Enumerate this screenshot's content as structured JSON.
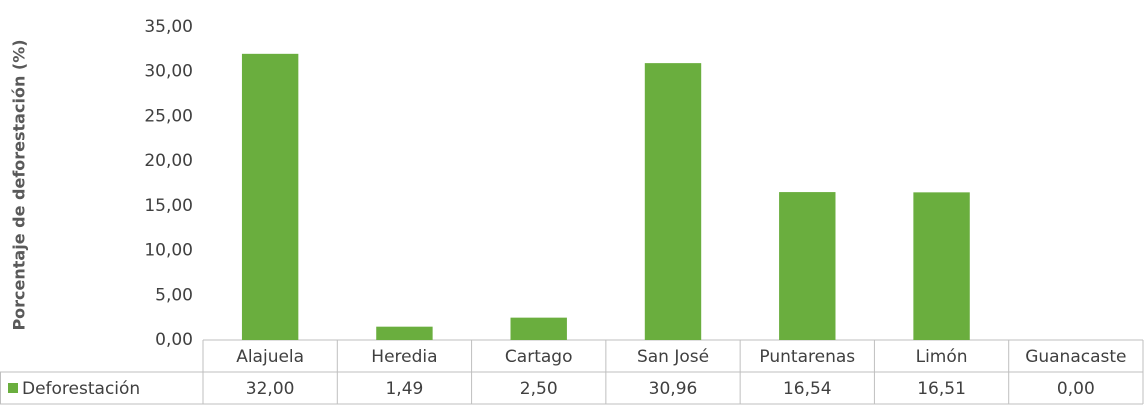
{
  "chart_data": {
    "type": "bar",
    "ylabel": "Porcentaje de deforestación (%)",
    "categories": [
      "Alajuela",
      "Heredia",
      "Cartago",
      "San José",
      "Puntarenas",
      "Limón",
      "Guanacaste"
    ],
    "series": [
      {
        "name": "Deforestación",
        "color": "#6aae3e",
        "values": [
          32.0,
          1.49,
          2.5,
          30.96,
          16.54,
          16.51,
          0.0
        ],
        "value_labels": [
          "32,00",
          "1,49",
          "2,50",
          "30,96",
          "16,54",
          "16,51",
          "0,00"
        ]
      }
    ],
    "ylim": [
      0,
      35
    ],
    "yticks": [
      {
        "value": 0,
        "label": "0,00"
      },
      {
        "value": 5,
        "label": "5,00"
      },
      {
        "value": 10,
        "label": "10,00"
      },
      {
        "value": 15,
        "label": "15,00"
      },
      {
        "value": 20,
        "label": "20,00"
      },
      {
        "value": 25,
        "label": "25,00"
      },
      {
        "value": 30,
        "label": "30,00"
      },
      {
        "value": 35,
        "label": "35,00"
      }
    ],
    "grid": false
  }
}
